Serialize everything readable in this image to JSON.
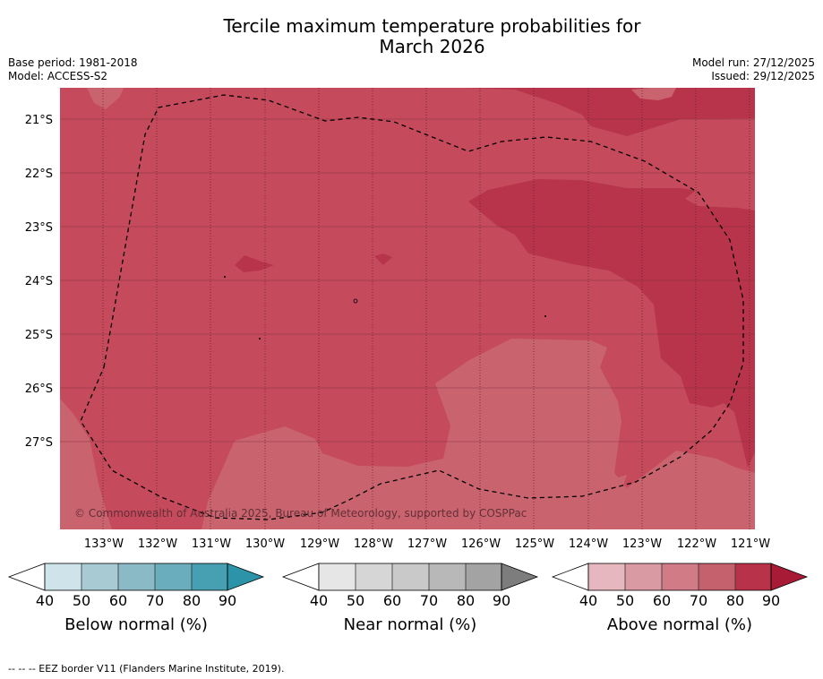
{
  "title_line1": "Tercile maximum temperature probabilities for",
  "title_line2": "March 2026",
  "base_period": "Base period: 1981-2018",
  "model": "Model: ACCESS-S2",
  "model_run": "Model run: 27/12/2025",
  "issued": "Issued: 29/12/2025",
  "copyright": "© Commonwealth of Australia 2025, Bureau of Meteorology, supported by COSPPac",
  "lat_labels": [
    "21°S",
    "22°S",
    "23°S",
    "24°S",
    "25°S",
    "26°S",
    "27°S"
  ],
  "lon_labels": [
    "133°W",
    "132°W",
    "131°W",
    "130°W",
    "129°W",
    "128°W",
    "127°W",
    "126°W",
    "125°W",
    "124°W",
    "123°W",
    "122°W",
    "121°W"
  ],
  "colorbars": [
    {
      "label": "Below normal (%)",
      "ticks": [
        "40",
        "50",
        "60",
        "70",
        "80",
        "90"
      ],
      "colors": [
        "#cfe4ea",
        "#a8cbd3",
        "#8bbac7",
        "#6aadbd",
        "#47a0b2",
        "#2c93a8"
      ]
    },
    {
      "label": "Near normal (%)",
      "ticks": [
        "40",
        "50",
        "60",
        "70",
        "80",
        "90"
      ],
      "colors": [
        "#e6e6e6",
        "#d6d6d6",
        "#c9c9c9",
        "#b8b8b8",
        "#a3a3a3",
        "#7d7d7d"
      ]
    },
    {
      "label": "Above normal (%)",
      "ticks": [
        "40",
        "50",
        "60",
        "70",
        "80",
        "90"
      ],
      "colors": [
        "#e6b7be",
        "#da9aa3",
        "#d07b86",
        "#c5606d",
        "#b83249",
        "#a81b36"
      ]
    }
  ],
  "footnote": "--  --  -- EEZ border V11 (Flanders Marine Institute, 2019)."
}
